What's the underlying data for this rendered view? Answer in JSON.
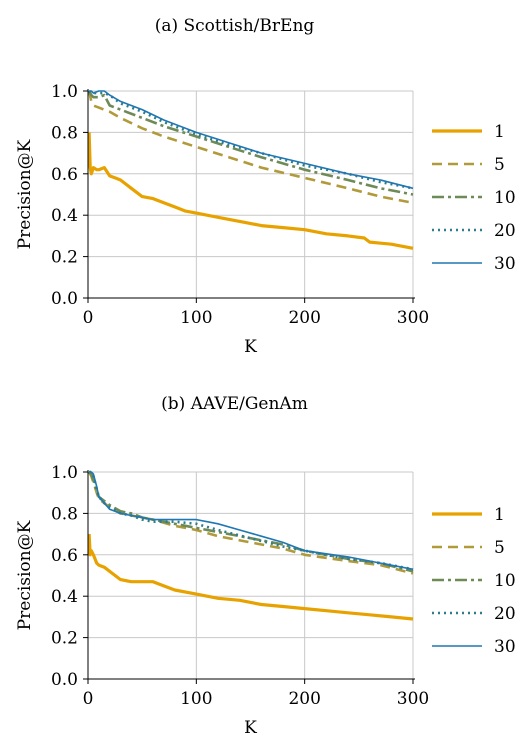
{
  "chart_data": [
    {
      "type": "line",
      "title": "(a) Scottish/BrEng",
      "xlabel": "K",
      "ylabel": "Precision@K",
      "xlim": [
        0,
        300
      ],
      "ylim": [
        0,
        1.0
      ],
      "xticks": [
        "0",
        "100",
        "200",
        "300"
      ],
      "yticks": [
        "0.0",
        "0.2",
        "0.4",
        "0.6",
        "0.8",
        "1.0"
      ],
      "grid": true,
      "legend": "right",
      "series": [
        {
          "name": "1",
          "color": "#E8A200",
          "dash": "solid",
          "width": 3.2,
          "x": [
            1,
            2,
            3,
            5,
            8,
            10,
            15,
            20,
            25,
            30,
            40,
            50,
            60,
            70,
            80,
            90,
            100,
            120,
            140,
            160,
            180,
            200,
            220,
            240,
            255,
            260,
            280,
            300
          ],
          "y": [
            0.8,
            0.63,
            0.6,
            0.63,
            0.62,
            0.62,
            0.63,
            0.59,
            0.58,
            0.57,
            0.53,
            0.49,
            0.48,
            0.46,
            0.44,
            0.42,
            0.41,
            0.39,
            0.37,
            0.35,
            0.34,
            0.33,
            0.31,
            0.3,
            0.29,
            0.27,
            0.26,
            0.24
          ]
        },
        {
          "name": "5",
          "color": "#B09A3A",
          "dash": "10,6",
          "width": 2.6,
          "x": [
            1,
            3,
            5,
            10,
            20,
            30,
            50,
            70,
            100,
            130,
            160,
            200,
            240,
            270,
            300
          ],
          "y": [
            1.0,
            0.95,
            0.93,
            0.92,
            0.9,
            0.87,
            0.82,
            0.78,
            0.73,
            0.68,
            0.63,
            0.58,
            0.53,
            0.49,
            0.46
          ]
        },
        {
          "name": "10",
          "color": "#6E8A56",
          "dash": "12,4,3,4",
          "width": 2.6,
          "x": [
            1,
            3,
            5,
            10,
            15,
            20,
            30,
            50,
            70,
            100,
            130,
            160,
            200,
            240,
            270,
            300
          ],
          "y": [
            1.0,
            0.98,
            0.97,
            0.97,
            0.98,
            0.93,
            0.91,
            0.87,
            0.83,
            0.78,
            0.73,
            0.68,
            0.62,
            0.57,
            0.53,
            0.5
          ]
        },
        {
          "name": "20",
          "color": "#2E7D8A",
          "dash": "2,4",
          "width": 2.6,
          "x": [
            1,
            3,
            5,
            10,
            15,
            20,
            30,
            50,
            70,
            100,
            130,
            160,
            200,
            240,
            270,
            300
          ],
          "y": [
            1.0,
            0.99,
            0.99,
            0.99,
            0.99,
            0.98,
            0.94,
            0.9,
            0.85,
            0.79,
            0.74,
            0.7,
            0.64,
            0.6,
            0.56,
            0.53
          ]
        },
        {
          "name": "30",
          "color": "#1F77B4",
          "dash": "solid",
          "width": 1.6,
          "x": [
            1,
            3,
            5,
            10,
            15,
            20,
            30,
            50,
            70,
            100,
            130,
            160,
            200,
            240,
            270,
            300
          ],
          "y": [
            1.0,
            1.0,
            0.99,
            1.0,
            1.0,
            0.98,
            0.95,
            0.91,
            0.86,
            0.8,
            0.75,
            0.7,
            0.65,
            0.6,
            0.57,
            0.53
          ]
        }
      ]
    },
    {
      "type": "line",
      "title": "(b) AAVE/GenAm",
      "xlabel": "K",
      "ylabel": "Precision@K",
      "xlim": [
        0,
        300
      ],
      "ylim": [
        0,
        1.0
      ],
      "xticks": [
        "0",
        "100",
        "200",
        "300"
      ],
      "yticks": [
        "0.0",
        "0.2",
        "0.4",
        "0.6",
        "0.8",
        "1.0"
      ],
      "grid": true,
      "legend": "right",
      "series": [
        {
          "name": "1",
          "color": "#E8A200",
          "dash": "solid",
          "width": 3.2,
          "x": [
            1,
            2,
            3,
            5,
            8,
            10,
            15,
            20,
            25,
            30,
            40,
            50,
            60,
            70,
            80,
            100,
            120,
            140,
            160,
            180,
            200,
            220,
            240,
            260,
            280,
            300
          ],
          "y": [
            0.7,
            0.6,
            0.62,
            0.6,
            0.56,
            0.55,
            0.54,
            0.52,
            0.5,
            0.48,
            0.47,
            0.47,
            0.47,
            0.45,
            0.43,
            0.41,
            0.39,
            0.38,
            0.36,
            0.35,
            0.34,
            0.33,
            0.32,
            0.31,
            0.3,
            0.29
          ]
        },
        {
          "name": "5",
          "color": "#B09A3A",
          "dash": "10,6",
          "width": 2.6,
          "x": [
            1,
            3,
            5,
            8,
            10,
            15,
            20,
            30,
            40,
            50,
            60,
            80,
            100,
            120,
            150,
            180,
            200,
            240,
            270,
            300
          ],
          "y": [
            1.0,
            0.98,
            0.95,
            0.9,
            0.87,
            0.85,
            0.83,
            0.8,
            0.79,
            0.78,
            0.77,
            0.74,
            0.72,
            0.69,
            0.66,
            0.63,
            0.6,
            0.57,
            0.55,
            0.51
          ]
        },
        {
          "name": "10",
          "color": "#6E8A56",
          "dash": "12,4,3,4",
          "width": 2.6,
          "x": [
            1,
            3,
            5,
            8,
            10,
            15,
            20,
            30,
            40,
            50,
            60,
            80,
            100,
            120,
            150,
            180,
            200,
            240,
            270,
            300
          ],
          "y": [
            1.0,
            0.99,
            0.96,
            0.91,
            0.88,
            0.86,
            0.84,
            0.81,
            0.8,
            0.78,
            0.77,
            0.75,
            0.73,
            0.71,
            0.68,
            0.65,
            0.62,
            0.58,
            0.56,
            0.52
          ]
        },
        {
          "name": "20",
          "color": "#2E7D8A",
          "dash": "2,4",
          "width": 2.6,
          "x": [
            1,
            3,
            5,
            8,
            10,
            15,
            20,
            30,
            40,
            50,
            60,
            80,
            100,
            120,
            150,
            180,
            200,
            240,
            270,
            300
          ],
          "y": [
            1.0,
            1.0,
            0.98,
            0.92,
            0.88,
            0.85,
            0.83,
            0.8,
            0.79,
            0.77,
            0.76,
            0.76,
            0.75,
            0.72,
            0.68,
            0.64,
            0.62,
            0.58,
            0.56,
            0.53
          ]
        },
        {
          "name": "30",
          "color": "#1F77B4",
          "dash": "solid",
          "width": 1.6,
          "x": [
            1,
            3,
            5,
            8,
            10,
            15,
            20,
            30,
            40,
            50,
            60,
            70,
            80,
            90,
            100,
            110,
            120,
            140,
            160,
            180,
            200,
            240,
            270,
            300
          ],
          "y": [
            1.0,
            1.0,
            0.99,
            0.93,
            0.88,
            0.85,
            0.82,
            0.8,
            0.79,
            0.78,
            0.77,
            0.77,
            0.77,
            0.77,
            0.77,
            0.76,
            0.75,
            0.72,
            0.69,
            0.66,
            0.62,
            0.59,
            0.56,
            0.53
          ]
        }
      ]
    }
  ]
}
